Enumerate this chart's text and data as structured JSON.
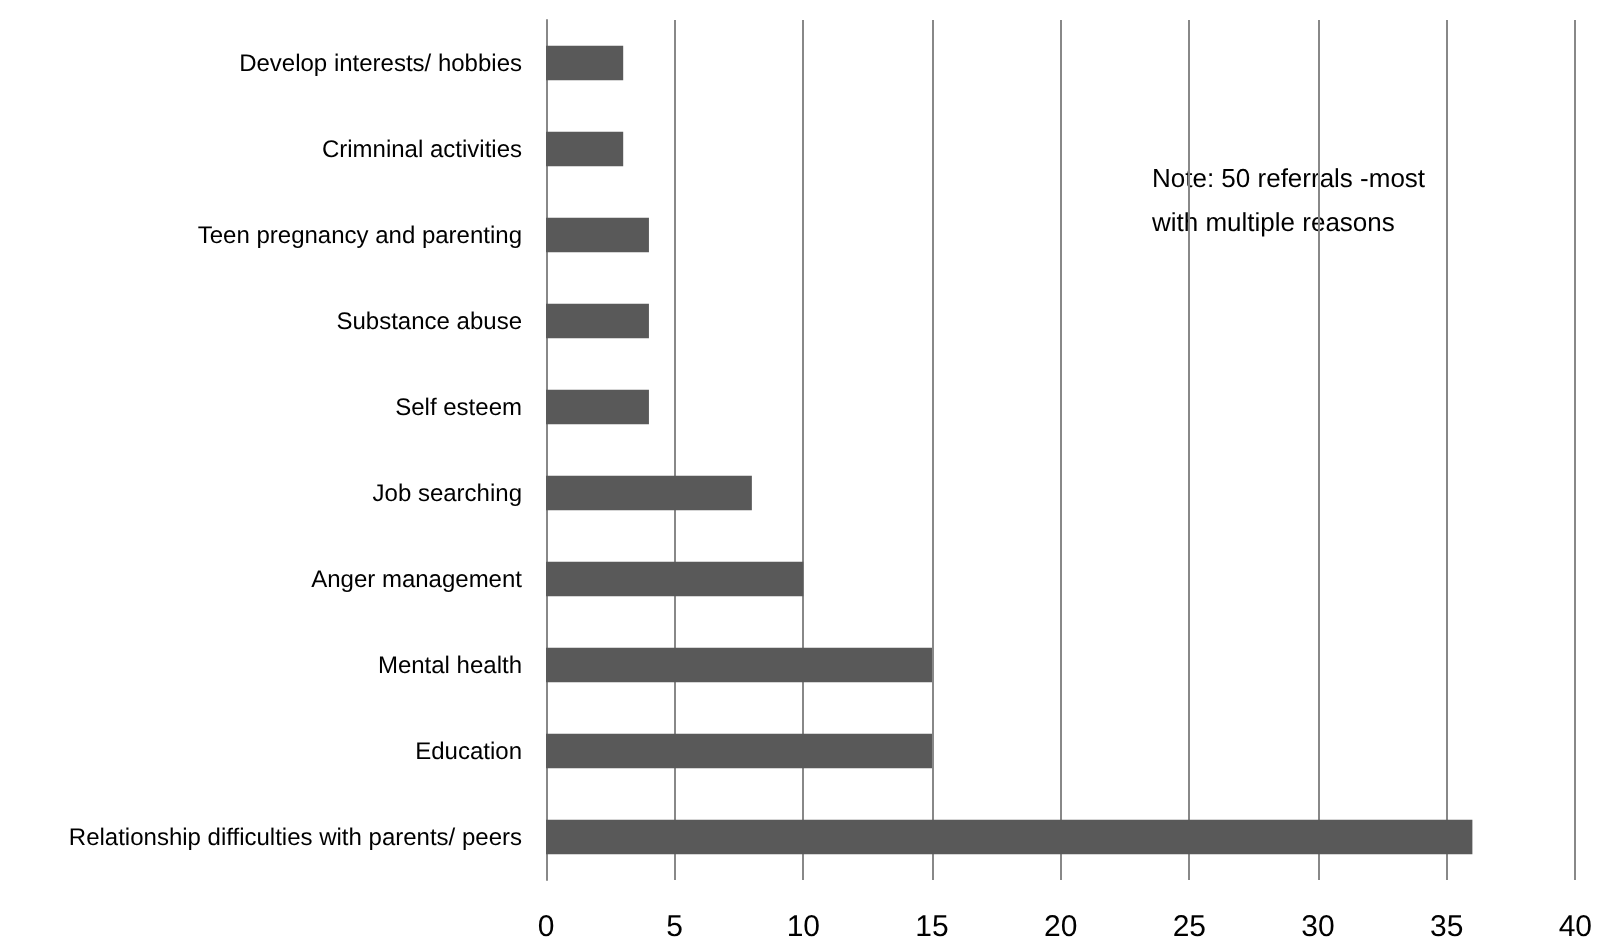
{
  "chart_data": {
    "type": "bar",
    "orientation": "horizontal",
    "categories": [
      "Develop interests/ hobbies",
      "Crimninal activities",
      "Teen pregnancy and parenting",
      "Substance abuse",
      "Self esteem",
      "Job searching",
      "Anger management",
      "Mental health",
      "Education",
      "Relationship difficulties with parents/ peers"
    ],
    "values": [
      3,
      3,
      4,
      4,
      4,
      8,
      10,
      15,
      15,
      36
    ],
    "color": "#595959",
    "xlim": [
      0,
      40
    ],
    "xticks": [
      0,
      5,
      10,
      15,
      20,
      25,
      30,
      35,
      40
    ],
    "grid": "x",
    "annotations": [
      "Note: 50 referrals -most with multiple reasons"
    ]
  }
}
